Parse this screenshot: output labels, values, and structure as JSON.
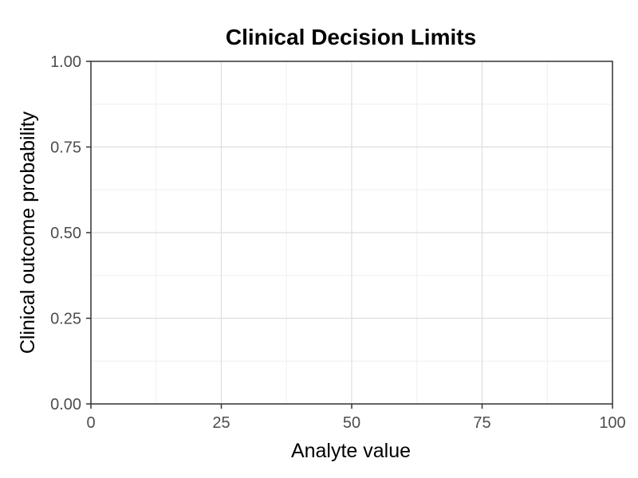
{
  "chart_data": {
    "type": "line",
    "title": "Clinical Decision Limits",
    "xlabel": "Analyte value",
    "ylabel": "Clinical outcome probability",
    "xlim": [
      0,
      100
    ],
    "ylim": [
      0,
      1
    ],
    "x_ticks": [
      0,
      25,
      50,
      75,
      100
    ],
    "x_tick_labels": [
      "0",
      "25",
      "50",
      "75",
      "100"
    ],
    "x_minor_ticks": [
      12.5,
      37.5,
      62.5,
      87.5
    ],
    "y_ticks": [
      0,
      0.25,
      0.5,
      0.75,
      1
    ],
    "y_tick_labels": [
      "0.00",
      "0.25",
      "0.50",
      "0.75",
      "1.00"
    ],
    "y_minor_ticks": [
      0.125,
      0.375,
      0.625,
      0.875
    ],
    "grid": true,
    "series": [],
    "colors": {
      "major_grid": "#dedede",
      "minor_grid": "#efefef",
      "panel_border": "#333333",
      "tick": "#333333"
    }
  }
}
